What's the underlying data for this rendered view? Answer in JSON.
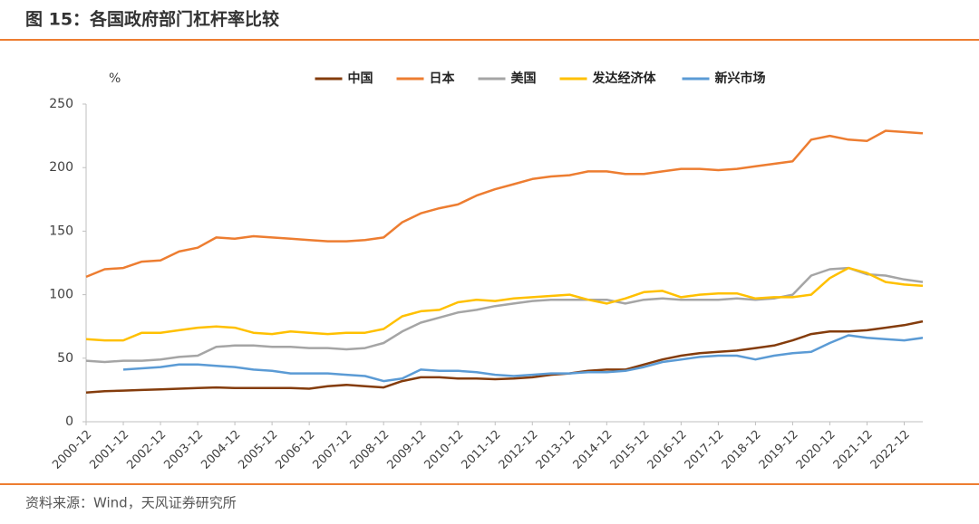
{
  "title": "图 15：各国政府部门杠杆率比较",
  "source": "资料来源：Wind，天风证券研究所",
  "chart_data": {
    "type": "line",
    "y_unit": "%",
    "categories": [
      "2000-12",
      null,
      "2001-12",
      null,
      "2002-12",
      null,
      "2003-12",
      null,
      "2004-12",
      null,
      "2005-12",
      null,
      "2006-12",
      null,
      "2007-12",
      null,
      "2008-12",
      null,
      "2009-12",
      null,
      "2010-12",
      null,
      "2011-12",
      null,
      "2012-12",
      null,
      "2013-12",
      null,
      "2014-12",
      null,
      "2015-12",
      null,
      "2016-12",
      null,
      "2017-12",
      null,
      "2018-12",
      null,
      "2019-12",
      null,
      "2020-12",
      null,
      "2021-12",
      null,
      "2022-12",
      null
    ],
    "series": [
      {
        "name": "中国",
        "color": "#843c0c",
        "values": [
          23,
          24,
          24.5,
          25,
          25.5,
          26,
          26.5,
          27,
          26.5,
          26.5,
          26.5,
          26.5,
          26,
          28,
          29,
          28,
          27,
          32,
          35,
          35,
          34,
          34,
          33.5,
          34,
          35,
          37,
          38,
          40,
          41,
          41,
          45,
          49,
          52,
          54,
          55,
          56,
          58,
          60,
          64,
          69,
          71,
          71,
          72,
          74,
          76,
          79
        ]
      },
      {
        "name": "日本",
        "color": "#ed7d31",
        "values": [
          114,
          120,
          121,
          126,
          127,
          134,
          137,
          145,
          144,
          146,
          145,
          144,
          143,
          142,
          142,
          143,
          145,
          157,
          164,
          168,
          171,
          178,
          183,
          187,
          191,
          193,
          194,
          197,
          197,
          195,
          195,
          197,
          199,
          199,
          198,
          199,
          201,
          203,
          205,
          222,
          225,
          222,
          221,
          229,
          228,
          227
        ]
      },
      {
        "name": "美国",
        "color": "#a5a5a5",
        "values": [
          48,
          47,
          48,
          48,
          49,
          51,
          52,
          59,
          60,
          60,
          59,
          59,
          58,
          58,
          57,
          58,
          62,
          71,
          78,
          82,
          86,
          88,
          91,
          93,
          95,
          96,
          96,
          96,
          96,
          93,
          96,
          97,
          96,
          96,
          96,
          97,
          96,
          97,
          100,
          115,
          120,
          121,
          116,
          115,
          112,
          110
        ]
      },
      {
        "name": "发达经济体",
        "color": "#ffc000",
        "values": [
          65,
          64,
          64,
          70,
          70,
          72,
          74,
          75,
          74,
          70,
          69,
          71,
          70,
          69,
          70,
          70,
          73,
          83,
          87,
          88,
          94,
          96,
          95,
          97,
          98,
          99,
          100,
          96,
          93,
          97,
          102,
          103,
          98,
          100,
          101,
          101,
          97,
          98,
          98,
          100,
          113,
          121,
          117,
          110,
          108,
          107
        ]
      },
      {
        "name": "新兴市场",
        "color": "#5b9bd5",
        "values": [
          null,
          null,
          41,
          42,
          43,
          45,
          45,
          44,
          43,
          41,
          40,
          38,
          38,
          38,
          37,
          36,
          32,
          34,
          41,
          40,
          40,
          39,
          37,
          36,
          37,
          38,
          38,
          39,
          39,
          40,
          43,
          47,
          49,
          51,
          52,
          52,
          49,
          52,
          54,
          55,
          62,
          68,
          66,
          65,
          64,
          66
        ]
      }
    ],
    "ylim": [
      0,
      250
    ],
    "yticks": [
      0,
      50,
      100,
      150,
      200,
      250
    ],
    "grid": false,
    "legend": "top"
  }
}
